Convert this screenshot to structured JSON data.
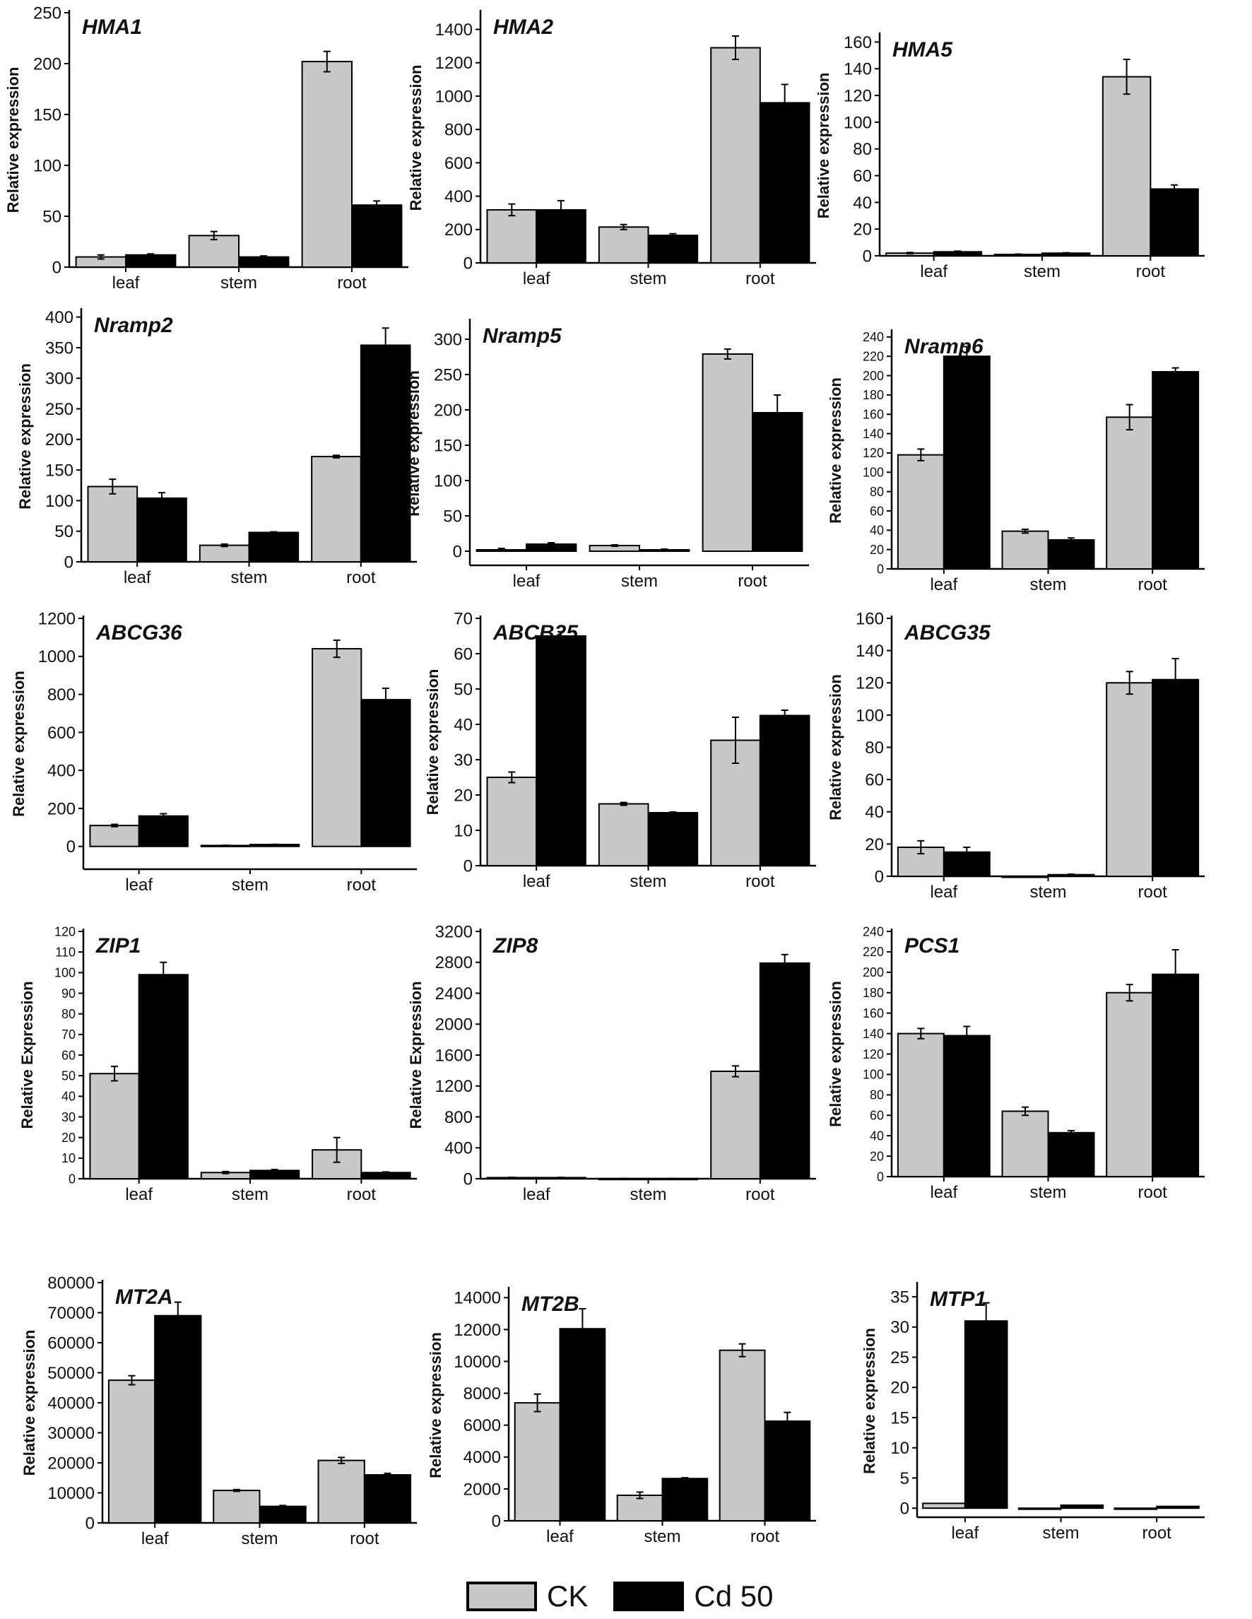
{
  "colors": {
    "ck": "#c8c8c8",
    "cd": "#000000",
    "axis": "#000000"
  },
  "legend": {
    "ck_label": "CK",
    "cd_label": "Cd 50"
  },
  "chart_data": [
    {
      "type": "bar",
      "title": "HMA1",
      "ylabel": "Relative expression",
      "categories": [
        "leaf",
        "stem",
        "root"
      ],
      "ylim": [
        0,
        250
      ],
      "yticks": [
        0,
        50,
        100,
        150,
        200,
        250
      ],
      "series": [
        {
          "name": "CK",
          "values": [
            10,
            31,
            202
          ],
          "errors": [
            2,
            4,
            10
          ]
        },
        {
          "name": "Cd 50",
          "values": [
            12,
            10,
            61
          ],
          "errors": [
            1,
            1,
            4
          ]
        }
      ]
    },
    {
      "type": "bar",
      "title": "HMA2",
      "ylabel": "Relative expression",
      "categories": [
        "leaf",
        "stem",
        "root"
      ],
      "ylim": [
        0,
        1500
      ],
      "yticks": [
        0,
        200,
        400,
        600,
        800,
        1000,
        1200,
        1400
      ],
      "series": [
        {
          "name": "CK",
          "values": [
            318,
            215,
            1290
          ],
          "errors": [
            35,
            15,
            70
          ]
        },
        {
          "name": "Cd 50",
          "values": [
            318,
            165,
            960
          ],
          "errors": [
            55,
            10,
            110
          ]
        }
      ]
    },
    {
      "type": "bar",
      "title": "HMA5",
      "ylabel": "Relative expression",
      "categories": [
        "leaf",
        "stem",
        "root"
      ],
      "ylim": [
        0,
        165
      ],
      "yticks": [
        0,
        20,
        40,
        60,
        80,
        100,
        120,
        140,
        160
      ],
      "series": [
        {
          "name": "CK",
          "values": [
            2,
            1,
            134
          ],
          "errors": [
            0.5,
            0.3,
            13
          ]
        },
        {
          "name": "Cd 50",
          "values": [
            3,
            2,
            50
          ],
          "errors": [
            0.5,
            0.3,
            3
          ]
        }
      ]
    },
    {
      "type": "bar",
      "title": "Nramp2",
      "ylabel": "Relative expression",
      "categories": [
        "leaf",
        "stem",
        "root"
      ],
      "ylim": [
        0,
        410
      ],
      "yticks": [
        0,
        50,
        100,
        150,
        200,
        250,
        300,
        350,
        400
      ],
      "series": [
        {
          "name": "CK",
          "values": [
            123,
            27,
            172
          ],
          "errors": [
            12,
            2,
            2
          ]
        },
        {
          "name": "Cd 50",
          "values": [
            104,
            48,
            354
          ],
          "errors": [
            9,
            1,
            28
          ]
        }
      ]
    },
    {
      "type": "bar",
      "title": "Nramp5",
      "ylabel": "Relative expression",
      "categories": [
        "leaf",
        "stem",
        "root"
      ],
      "ylim": [
        -20,
        325
      ],
      "yticks": [
        0,
        50,
        100,
        150,
        200,
        250,
        300
      ],
      "series": [
        {
          "name": "CK",
          "values": [
            2,
            8,
            279
          ],
          "errors": [
            2,
            1,
            7
          ]
        },
        {
          "name": "Cd 50",
          "values": [
            10,
            2,
            196
          ],
          "errors": [
            2,
            1,
            25
          ]
        }
      ]
    },
    {
      "type": "bar",
      "title": "Nramp6",
      "ylabel": "Relative expression",
      "categories": [
        "leaf",
        "stem",
        "root"
      ],
      "ylim": [
        0,
        245
      ],
      "yticks": [
        0,
        20,
        40,
        60,
        80,
        100,
        120,
        140,
        160,
        180,
        200,
        220,
        240
      ],
      "series": [
        {
          "name": "CK",
          "values": [
            118,
            39,
            157
          ],
          "errors": [
            6,
            2,
            13
          ]
        },
        {
          "name": "Cd 50",
          "values": [
            220,
            30,
            204
          ],
          "errors": [
            10,
            2,
            4
          ]
        }
      ]
    },
    {
      "type": "bar",
      "title": "ABCG36",
      "ylabel": "Relative expression",
      "categories": [
        "leaf",
        "stem",
        "root"
      ],
      "ylim": [
        -120,
        1200
      ],
      "yticks": [
        0,
        200,
        400,
        600,
        800,
        1000,
        1200
      ],
      "series": [
        {
          "name": "CK",
          "values": [
            110,
            5,
            1040
          ],
          "errors": [
            6,
            1,
            45
          ]
        },
        {
          "name": "Cd 50",
          "values": [
            160,
            10,
            772
          ],
          "errors": [
            12,
            1,
            60
          ]
        }
      ]
    },
    {
      "type": "bar",
      "title": "ABCB25",
      "ylabel": "Relative expression",
      "categories": [
        "leaf",
        "stem",
        "root"
      ],
      "ylim": [
        0,
        70
      ],
      "yticks": [
        0,
        10,
        20,
        30,
        40,
        50,
        60,
        70
      ],
      "series": [
        {
          "name": "CK",
          "values": [
            25,
            17.5,
            35.5
          ],
          "errors": [
            1.5,
            0.4,
            6.5
          ]
        },
        {
          "name": "Cd 50",
          "values": [
            65,
            15,
            42.5
          ],
          "errors": [
            1.2,
            0.2,
            1.5
          ]
        }
      ]
    },
    {
      "type": "bar",
      "title": "ABCG35",
      "ylabel": "Relative expression",
      "categories": [
        "leaf",
        "stem",
        "root"
      ],
      "ylim": [
        0,
        160
      ],
      "yticks": [
        0,
        20,
        40,
        60,
        80,
        100,
        120,
        140,
        160
      ],
      "series": [
        {
          "name": "CK",
          "values": [
            18,
            0,
            120
          ],
          "errors": [
            4,
            0,
            7
          ]
        },
        {
          "name": "Cd 50",
          "values": [
            15,
            1,
            122
          ],
          "errors": [
            3,
            0.3,
            13
          ]
        }
      ]
    },
    {
      "type": "bar",
      "title": "ZIP1",
      "ylabel": "Relative Expression",
      "categories": [
        "leaf",
        "stem",
        "root"
      ],
      "ylim": [
        0,
        120
      ],
      "yticks": [
        0,
        10,
        20,
        30,
        40,
        50,
        60,
        70,
        80,
        90,
        100,
        110,
        120
      ],
      "series": [
        {
          "name": "CK",
          "values": [
            51,
            3,
            14
          ],
          "errors": [
            3.5,
            0.5,
            6
          ]
        },
        {
          "name": "Cd 50",
          "values": [
            99,
            4,
            3
          ],
          "errors": [
            6,
            0.5,
            0.3
          ]
        }
      ]
    },
    {
      "type": "bar",
      "title": "ZIP8",
      "ylabel": "Relative Expression",
      "categories": [
        "leaf",
        "stem",
        "root"
      ],
      "ylim": [
        0,
        3200
      ],
      "yticks": [
        0,
        400,
        800,
        1200,
        1600,
        2000,
        2400,
        2800,
        3200
      ],
      "series": [
        {
          "name": "CK",
          "values": [
            15,
            3,
            1390
          ],
          "errors": [
            3,
            1,
            70
          ]
        },
        {
          "name": "Cd 50",
          "values": [
            15,
            3,
            2790
          ],
          "errors": [
            3,
            1,
            110
          ]
        }
      ]
    },
    {
      "type": "bar",
      "title": "PCS1",
      "ylabel": "Relative expression",
      "categories": [
        "leaf",
        "stem",
        "root"
      ],
      "ylim": [
        0,
        240
      ],
      "yticks": [
        0,
        20,
        40,
        60,
        80,
        100,
        120,
        140,
        160,
        180,
        200,
        220,
        240
      ],
      "series": [
        {
          "name": "CK",
          "values": [
            140,
            64,
            180
          ],
          "errors": [
            5,
            4,
            8
          ]
        },
        {
          "name": "Cd 50",
          "values": [
            138,
            43,
            198
          ],
          "errors": [
            9,
            2,
            24
          ]
        }
      ]
    },
    {
      "type": "bar",
      "title": "MT2A",
      "ylabel": "Relative expression",
      "categories": [
        "leaf",
        "stem",
        "root"
      ],
      "ylim": [
        0,
        80000
      ],
      "yticks": [
        0,
        10000,
        20000,
        30000,
        40000,
        50000,
        60000,
        70000,
        80000
      ],
      "series": [
        {
          "name": "CK",
          "values": [
            47500,
            10800,
            20800
          ],
          "errors": [
            1500,
            300,
            1000
          ]
        },
        {
          "name": "Cd 50",
          "values": [
            69000,
            5500,
            16000
          ],
          "errors": [
            4500,
            300,
            500
          ]
        }
      ]
    },
    {
      "type": "bar",
      "title": "MT2B",
      "ylabel": "Relative expression",
      "categories": [
        "leaf",
        "stem",
        "root"
      ],
      "ylim": [
        0,
        14500
      ],
      "yticks": [
        0,
        2000,
        4000,
        6000,
        8000,
        10000,
        12000,
        14000
      ],
      "series": [
        {
          "name": "CK",
          "values": [
            7400,
            1600,
            10700
          ],
          "errors": [
            550,
            200,
            400
          ]
        },
        {
          "name": "Cd 50",
          "values": [
            12050,
            2650,
            6250
          ],
          "errors": [
            1250,
            50,
            550
          ]
        }
      ]
    },
    {
      "type": "bar",
      "title": "MTP1",
      "ylabel": "Relative expression",
      "categories": [
        "leaf",
        "stem",
        "root"
      ],
      "ylim": [
        -1.5,
        37
      ],
      "yticks": [
        0,
        5,
        10,
        15,
        20,
        25,
        30,
        35
      ],
      "series": [
        {
          "name": "CK",
          "values": [
            0.8,
            0,
            0
          ],
          "errors": [
            0,
            0,
            0
          ]
        },
        {
          "name": "Cd 50",
          "values": [
            31,
            0.5,
            0.3
          ],
          "errors": [
            3,
            0,
            0
          ]
        }
      ]
    }
  ]
}
